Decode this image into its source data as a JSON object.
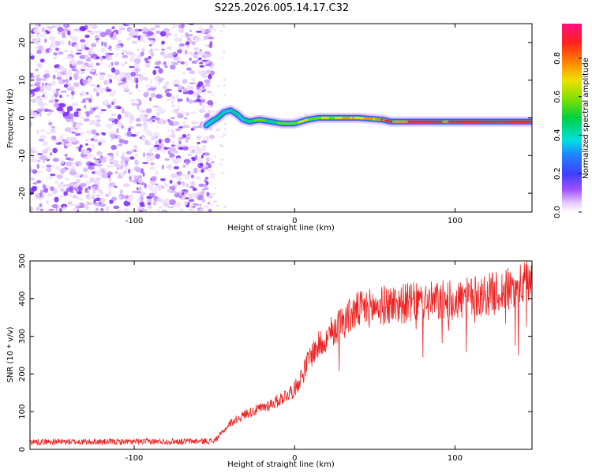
{
  "title": "S225.2026.005.14.17.C32",
  "chart_data": [
    {
      "type": "heatmap",
      "name": "spectrogram",
      "xlabel": "Height of straight line (km)",
      "ylabel": "Frequency (Hz)",
      "xlim": [
        -165,
        148
      ],
      "ylim": [
        -25,
        25
      ],
      "xticks": [
        -100,
        0,
        100
      ],
      "yticks": [
        -20,
        -10,
        0,
        10,
        20
      ],
      "noise_region_x": [
        -165,
        -53
      ],
      "ridge": {
        "x": [
          -55,
          -52,
          -48,
          -44,
          -40,
          -36,
          -32,
          -28,
          -22,
          -15,
          -8,
          0,
          8,
          15,
          25,
          40,
          55,
          60,
          80,
          100,
          120,
          148
        ],
        "y": [
          -2.0,
          -1.0,
          0.0,
          1.5,
          2.0,
          1.0,
          -0.5,
          -1.0,
          -0.5,
          -1.0,
          -1.5,
          -1.5,
          -0.5,
          0.0,
          0.0,
          0.0,
          -0.5,
          -1.0,
          -1.0,
          -1.0,
          -1.0,
          -1.0
        ]
      },
      "colorbar": {
        "label": "Normalized spectral amplitude",
        "range": [
          0.0,
          0.98
        ],
        "ticks": [
          0.0,
          0.2,
          0.4,
          0.6,
          0.8
        ]
      }
    },
    {
      "type": "line",
      "name": "snr",
      "xlabel": "Height of straight line (km)",
      "ylabel": "SNR (10 * v/v)",
      "xlim": [
        -165,
        148
      ],
      "ylim": [
        0,
        500
      ],
      "xticks": [
        -100,
        0,
        100
      ],
      "yticks": [
        0,
        100,
        200,
        300,
        400,
        500
      ],
      "color": "#ee2222",
      "trend": {
        "x": [
          -165,
          -100,
          -50,
          -45,
          -40,
          -30,
          -20,
          -10,
          0,
          5,
          10,
          20,
          30,
          40,
          60,
          80,
          100,
          120,
          140,
          148
        ],
        "y": [
          20,
          20,
          22,
          45,
          70,
          95,
          110,
          130,
          160,
          200,
          250,
          300,
          340,
          370,
          385,
          390,
          395,
          410,
          430,
          450
        ]
      }
    }
  ]
}
